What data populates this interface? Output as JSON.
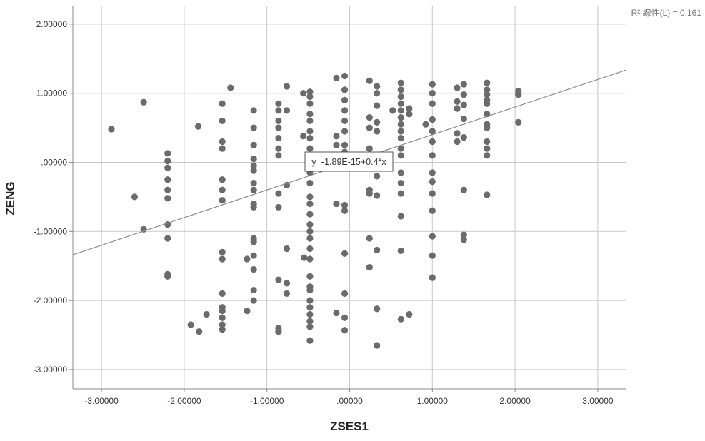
{
  "chart_data": {
    "type": "scatter",
    "xlabel": "ZSES1",
    "ylabel": "ZENG",
    "xlim": [
      -3.3,
      3.3
    ],
    "ylim": [
      -3.3,
      2.1
    ],
    "x_ticks": [
      -3,
      -2,
      -1,
      0,
      1,
      2,
      3
    ],
    "y_ticks": [
      -3,
      -2,
      -1,
      0,
      1,
      2
    ],
    "x_tick_labels": [
      "-3.00000",
      "-2.00000",
      "-1.00000",
      ".00000",
      "1.00000",
      "2.00000",
      "3.00000"
    ],
    "y_tick_labels": [
      "-3.00000",
      "-2.00000",
      "-1.00000",
      ".00000",
      "1.00000",
      "2.00000"
    ],
    "grid": true,
    "r2_label": "R² 線性(L) = 0.161",
    "fit_equation": "y=-1.89E-15+0.4*x",
    "fit": {
      "intercept": 0.0,
      "slope": 0.4
    },
    "colors": {
      "points": "#6b6b6b",
      "fit_line": "#8c8c8c",
      "grid": "#c8c8c8",
      "axis": "#888888"
    },
    "points": [
      [
        -2.88,
        0.48
      ],
      [
        -2.6,
        -0.5
      ],
      [
        -2.49,
        0.87
      ],
      [
        -2.49,
        -0.97
      ],
      [
        -2.2,
        0.13
      ],
      [
        -2.2,
        0.02
      ],
      [
        -2.2,
        -0.08
      ],
      [
        -2.2,
        -0.25
      ],
      [
        -2.2,
        -0.4
      ],
      [
        -2.2,
        -0.52
      ],
      [
        -2.2,
        -0.9
      ],
      [
        -2.2,
        -1.1
      ],
      [
        -2.2,
        -1.62
      ],
      [
        -2.2,
        -1.65
      ],
      [
        -1.92,
        -2.35
      ],
      [
        -1.83,
        0.52
      ],
      [
        -1.82,
        -2.45
      ],
      [
        -1.73,
        -2.2
      ],
      [
        -1.54,
        0.85
      ],
      [
        -1.54,
        0.6
      ],
      [
        -1.54,
        0.3
      ],
      [
        -1.54,
        0.2
      ],
      [
        -1.54,
        -0.25
      ],
      [
        -1.54,
        -0.4
      ],
      [
        -1.54,
        -0.55
      ],
      [
        -1.54,
        -1.3
      ],
      [
        -1.54,
        -1.4
      ],
      [
        -1.54,
        -1.9
      ],
      [
        -1.54,
        -2.1
      ],
      [
        -1.54,
        -2.15
      ],
      [
        -1.54,
        -2.25
      ],
      [
        -1.54,
        -2.35
      ],
      [
        -1.54,
        -2.42
      ],
      [
        -1.44,
        1.08
      ],
      [
        -1.24,
        -1.4
      ],
      [
        -1.24,
        -2.15
      ],
      [
        -1.16,
        0.75
      ],
      [
        -1.16,
        0.5
      ],
      [
        -1.16,
        0.25
      ],
      [
        -1.16,
        0.05
      ],
      [
        -1.16,
        -0.05
      ],
      [
        -1.16,
        -0.12
      ],
      [
        -1.16,
        -0.3
      ],
      [
        -1.16,
        -0.4
      ],
      [
        -1.16,
        -0.6
      ],
      [
        -1.16,
        -0.65
      ],
      [
        -1.16,
        -1.1
      ],
      [
        -1.16,
        -1.15
      ],
      [
        -1.16,
        -1.35
      ],
      [
        -1.16,
        -1.55
      ],
      [
        -1.16,
        -1.85
      ],
      [
        -1.16,
        -2.0
      ],
      [
        -0.86,
        0.85
      ],
      [
        -0.86,
        0.75
      ],
      [
        -0.86,
        0.6
      ],
      [
        -0.86,
        0.5
      ],
      [
        -0.86,
        0.35
      ],
      [
        -0.86,
        0.2
      ],
      [
        -0.86,
        0.1
      ],
      [
        -0.86,
        -0.45
      ],
      [
        -0.86,
        -0.65
      ],
      [
        -0.86,
        -1.7
      ],
      [
        -0.86,
        -2.4
      ],
      [
        -0.86,
        -2.45
      ],
      [
        -0.76,
        1.1
      ],
      [
        -0.76,
        0.75
      ],
      [
        -0.76,
        -0.33
      ],
      [
        -0.76,
        -1.25
      ],
      [
        -0.76,
        -1.75
      ],
      [
        -0.76,
        -1.9
      ],
      [
        -0.56,
        1.0
      ],
      [
        -0.56,
        0.38
      ],
      [
        -0.55,
        -1.38
      ],
      [
        -0.48,
        1.02
      ],
      [
        -0.48,
        0.95
      ],
      [
        -0.48,
        0.85
      ],
      [
        -0.48,
        0.7
      ],
      [
        -0.48,
        0.6
      ],
      [
        -0.48,
        0.45
      ],
      [
        -0.48,
        0.35
      ],
      [
        -0.48,
        0.2
      ],
      [
        -0.48,
        0.1
      ],
      [
        -0.48,
        -0.05
      ],
      [
        -0.48,
        -0.15
      ],
      [
        -0.48,
        -0.3
      ],
      [
        -0.48,
        -0.5
      ],
      [
        -0.48,
        -0.6
      ],
      [
        -0.48,
        -0.75
      ],
      [
        -0.48,
        -0.9
      ],
      [
        -0.48,
        -1.0
      ],
      [
        -0.48,
        -1.1
      ],
      [
        -0.48,
        -1.25
      ],
      [
        -0.48,
        -1.4
      ],
      [
        -0.48,
        -1.65
      ],
      [
        -0.48,
        -1.8
      ],
      [
        -0.48,
        -1.85
      ],
      [
        -0.48,
        -2.0
      ],
      [
        -0.48,
        -2.1
      ],
      [
        -0.48,
        -2.2
      ],
      [
        -0.48,
        -2.3
      ],
      [
        -0.48,
        -2.38
      ],
      [
        -0.48,
        -2.58
      ],
      [
        -0.16,
        1.22
      ],
      [
        -0.16,
        0.38
      ],
      [
        -0.16,
        0.25
      ],
      [
        -0.16,
        -0.6
      ],
      [
        -0.16,
        -2.18
      ],
      [
        -0.06,
        1.25
      ],
      [
        -0.06,
        1.05
      ],
      [
        -0.06,
        0.9
      ],
      [
        -0.06,
        0.75
      ],
      [
        -0.06,
        0.6
      ],
      [
        -0.06,
        0.45
      ],
      [
        -0.06,
        0.25
      ],
      [
        -0.06,
        0.15
      ],
      [
        -0.06,
        -0.62
      ],
      [
        -0.06,
        -0.7
      ],
      [
        -0.06,
        -1.32
      ],
      [
        -0.06,
        -1.9
      ],
      [
        -0.06,
        -2.25
      ],
      [
        -0.06,
        -2.43
      ],
      [
        0.24,
        1.18
      ],
      [
        0.24,
        0.65
      ],
      [
        0.24,
        0.5
      ],
      [
        0.24,
        0.2
      ],
      [
        0.24,
        -0.4
      ],
      [
        0.24,
        -0.45
      ],
      [
        0.24,
        -1.1
      ],
      [
        0.24,
        -1.52
      ],
      [
        0.33,
        1.1
      ],
      [
        0.33,
        1.0
      ],
      [
        0.33,
        0.82
      ],
      [
        0.33,
        0.58
      ],
      [
        0.33,
        0.45
      ],
      [
        0.33,
        -0.2
      ],
      [
        0.33,
        -0.48
      ],
      [
        0.33,
        -1.27
      ],
      [
        0.33,
        -2.12
      ],
      [
        0.33,
        -2.65
      ],
      [
        0.52,
        0.75
      ],
      [
        0.62,
        1.15
      ],
      [
        0.62,
        1.05
      ],
      [
        0.62,
        0.95
      ],
      [
        0.62,
        0.85
      ],
      [
        0.62,
        0.75
      ],
      [
        0.62,
        0.65
      ],
      [
        0.62,
        0.55
      ],
      [
        0.62,
        0.45
      ],
      [
        0.62,
        0.35
      ],
      [
        0.62,
        0.2
      ],
      [
        0.62,
        0.1
      ],
      [
        0.62,
        -0.15
      ],
      [
        0.62,
        -0.3
      ],
      [
        0.62,
        -0.45
      ],
      [
        0.62,
        -0.78
      ],
      [
        0.62,
        -1.28
      ],
      [
        0.62,
        -2.27
      ],
      [
        0.72,
        0.78
      ],
      [
        0.72,
        0.7
      ],
      [
        0.72,
        -2.2
      ],
      [
        0.92,
        0.55
      ],
      [
        1.0,
        1.13
      ],
      [
        1.0,
        1.0
      ],
      [
        1.0,
        0.85
      ],
      [
        1.0,
        0.62
      ],
      [
        1.0,
        0.45
      ],
      [
        1.0,
        0.3
      ],
      [
        1.0,
        0.1
      ],
      [
        1.0,
        -0.15
      ],
      [
        1.0,
        -0.28
      ],
      [
        1.0,
        -0.45
      ],
      [
        1.0,
        -0.7
      ],
      [
        1.0,
        -1.07
      ],
      [
        1.0,
        -1.35
      ],
      [
        1.0,
        -1.67
      ],
      [
        1.3,
        1.08
      ],
      [
        1.3,
        0.88
      ],
      [
        1.3,
        0.78
      ],
      [
        1.3,
        0.42
      ],
      [
        1.3,
        0.3
      ],
      [
        1.38,
        1.13
      ],
      [
        1.38,
        0.98
      ],
      [
        1.38,
        0.83
      ],
      [
        1.38,
        0.63
      ],
      [
        1.38,
        0.36
      ],
      [
        1.38,
        -0.4
      ],
      [
        1.38,
        -1.05
      ],
      [
        1.38,
        -1.12
      ],
      [
        1.66,
        1.15
      ],
      [
        1.66,
        1.05
      ],
      [
        1.66,
        0.98
      ],
      [
        1.66,
        0.9
      ],
      [
        1.66,
        0.85
      ],
      [
        1.66,
        0.7
      ],
      [
        1.66,
        0.55
      ],
      [
        1.66,
        0.5
      ],
      [
        1.66,
        0.3
      ],
      [
        1.66,
        0.2
      ],
      [
        1.66,
        0.1
      ],
      [
        1.66,
        -0.47
      ],
      [
        2.04,
        1.03
      ],
      [
        2.04,
        0.98
      ],
      [
        2.04,
        0.58
      ]
    ]
  }
}
